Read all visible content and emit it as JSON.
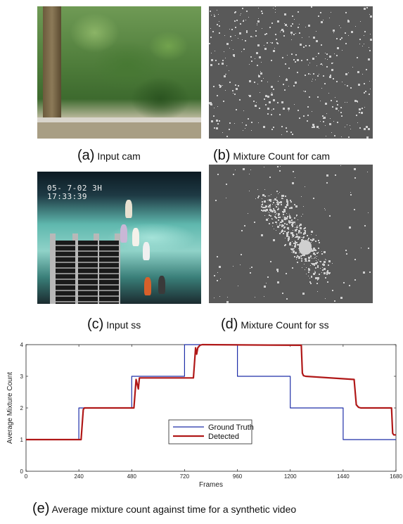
{
  "panels": {
    "a": {
      "tag": "(a)",
      "text": "Input cam"
    },
    "b": {
      "tag": "(b)",
      "text": "Mixture Count for cam"
    },
    "c": {
      "tag": "(c)",
      "text": "Input ss"
    },
    "d": {
      "tag": "(d)",
      "text": "Mixture Count for ss"
    },
    "e": {
      "tag": "(e)",
      "text": "Average mixture count against time for a synthetic video"
    }
  },
  "overlay_ss": {
    "line1": "05- 7-02  3H",
    "line2": "17:33:39"
  },
  "chart_data": {
    "type": "line",
    "xlabel": "Frames",
    "ylabel": "Average Mixture Count",
    "xlim": [
      0,
      1680
    ],
    "ylim": [
      0,
      4
    ],
    "xticks": [
      0,
      240,
      480,
      720,
      960,
      1200,
      1440,
      1680
    ],
    "yticks": [
      0,
      1,
      2,
      3,
      4
    ],
    "grid": false,
    "legend_position": "center",
    "series": [
      {
        "name": "Ground Truth",
        "color": "#1f2fa8",
        "step": true,
        "x": [
          0,
          240,
          240,
          480,
          480,
          720,
          720,
          960,
          960,
          1200,
          1200,
          1440,
          1440,
          1680
        ],
        "y": [
          1,
          1,
          2,
          2,
          3,
          3,
          4,
          4,
          3,
          3,
          2,
          2,
          1,
          1
        ]
      },
      {
        "name": "Detected",
        "color": "#b01818",
        "step": false,
        "x": [
          0,
          250,
          260,
          265,
          490,
          500,
          510,
          515,
          520,
          525,
          760,
          770,
          775,
          780,
          790,
          800,
          1250,
          1255,
          1260,
          1270,
          1490,
          1500,
          1510,
          1520,
          1660,
          1665,
          1670,
          1680
        ],
        "y": [
          1,
          1,
          1.95,
          2,
          2,
          2.9,
          2.6,
          2.95,
          2.95,
          2.95,
          2.95,
          3.9,
          3.7,
          3.9,
          3.98,
          4,
          3.98,
          3.1,
          3.02,
          3,
          2.9,
          2.1,
          2.02,
          2,
          2,
          1.2,
          1.15,
          1.15
        ]
      }
    ]
  }
}
